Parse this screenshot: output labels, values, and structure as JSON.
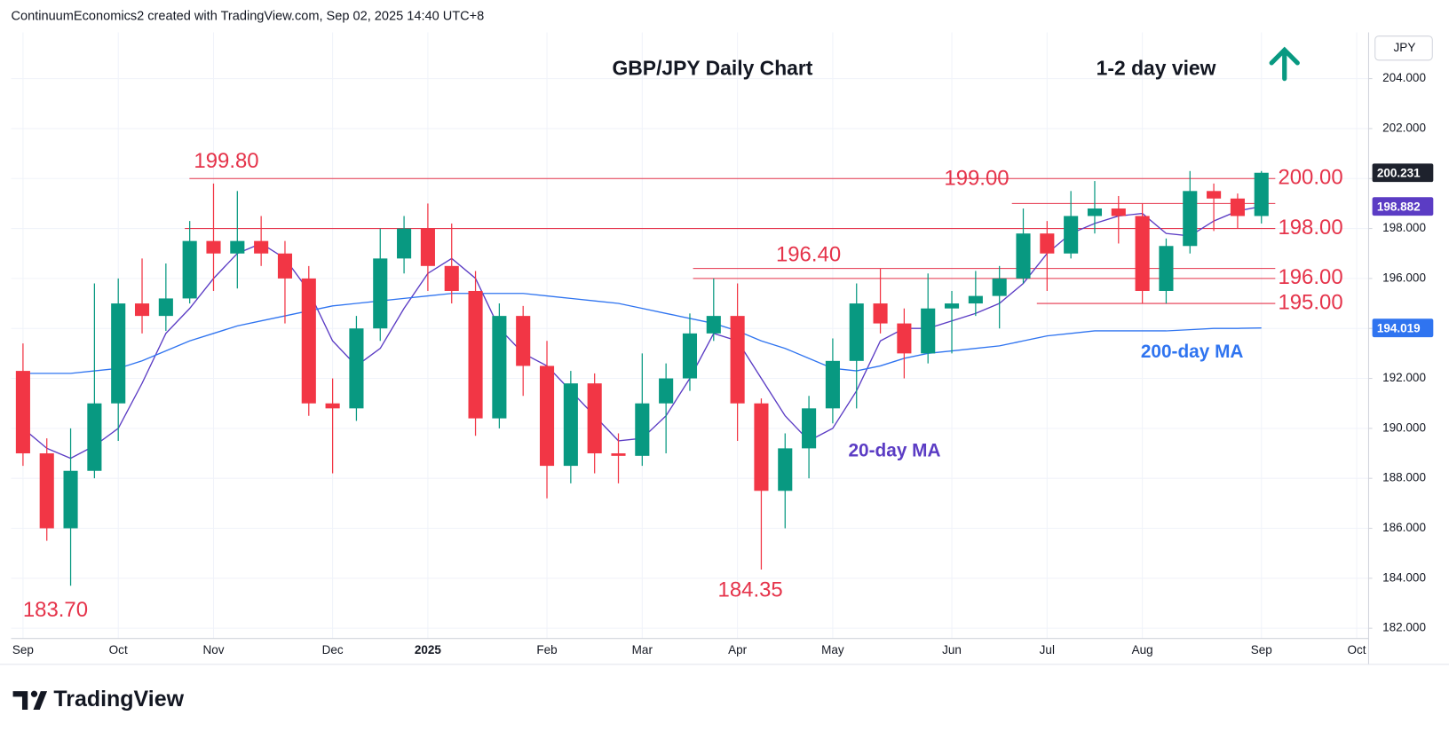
{
  "chart_data": {
    "type": "candlestick",
    "header": "ContinuumEconomics2 created with TradingView.com, Sep 02, 2025 14:40 UTC+8",
    "title": "GBP/JPY Daily Chart",
    "subtitle": "1-2 day view",
    "currency": "JPY",
    "brand": "TradingView",
    "categories": [
      "Sep",
      null,
      null,
      null,
      "Oct",
      null,
      null,
      null,
      "Nov",
      null,
      null,
      null,
      null,
      "Dec",
      null,
      null,
      null,
      "2025",
      null,
      null,
      null,
      null,
      "Feb",
      null,
      null,
      null,
      "Mar",
      null,
      null,
      null,
      "Apr",
      null,
      null,
      null,
      "May",
      null,
      null,
      null,
      null,
      "Jun",
      null,
      null,
      null,
      "Jul",
      null,
      null,
      null,
      "Aug",
      null,
      null,
      null,
      null,
      "Sep",
      null,
      null,
      null,
      "Oct"
    ],
    "open": [
      192.3,
      189.0,
      186.0,
      188.3,
      191.0,
      195.0,
      194.5,
      195.2,
      197.5,
      197.0,
      197.5,
      197.0,
      196.0,
      191.0,
      190.8,
      194.0,
      196.8,
      198.0,
      196.5,
      195.5,
      190.4,
      194.5,
      192.5,
      188.5,
      191.8,
      189.0,
      188.9,
      191.0,
      192.0,
      193.8,
      194.5,
      191.0,
      187.5,
      189.2,
      190.8,
      192.7,
      195.0,
      194.2,
      193.0,
      194.8,
      195.0,
      195.3,
      196.0,
      197.8,
      197.0,
      198.5,
      198.8,
      198.5,
      195.5,
      197.3,
      199.5,
      199.2,
      198.5,
      null,
      null,
      null,
      null
    ],
    "high": [
      193.4,
      189.6,
      190.0,
      195.8,
      196.0,
      196.8,
      196.6,
      198.3,
      199.8,
      199.5,
      198.5,
      197.5,
      196.5,
      192.0,
      194.5,
      198.0,
      198.5,
      199.0,
      198.2,
      196.3,
      195.0,
      194.9,
      193.5,
      192.3,
      192.2,
      189.8,
      193.0,
      192.6,
      194.6,
      196.0,
      195.8,
      191.2,
      189.8,
      191.3,
      193.6,
      195.8,
      196.4,
      194.8,
      196.2,
      195.5,
      196.3,
      196.5,
      198.8,
      198.3,
      199.5,
      199.9,
      199.3,
      199.0,
      197.6,
      200.3,
      199.8,
      199.4,
      200.3,
      null,
      null,
      null,
      null
    ],
    "low": [
      188.5,
      185.5,
      183.7,
      188.0,
      189.5,
      193.8,
      193.9,
      195.0,
      195.5,
      195.6,
      196.5,
      194.2,
      190.5,
      188.2,
      190.3,
      193.5,
      196.2,
      195.5,
      195.0,
      189.7,
      190.0,
      191.3,
      187.2,
      187.8,
      188.2,
      187.8,
      188.5,
      189.0,
      191.5,
      193.5,
      189.5,
      184.35,
      186.0,
      188.0,
      190.2,
      190.8,
      193.8,
      192.0,
      192.6,
      193.0,
      194.5,
      194.0,
      195.8,
      195.5,
      196.8,
      197.8,
      197.4,
      195.0,
      195.0,
      197.0,
      197.9,
      198.0,
      198.2,
      null,
      null,
      null,
      null
    ],
    "close": [
      189.0,
      186.0,
      188.3,
      191.0,
      195.0,
      194.5,
      195.2,
      197.5,
      197.0,
      197.5,
      197.0,
      196.0,
      191.0,
      190.8,
      194.0,
      196.8,
      198.0,
      196.5,
      195.5,
      190.4,
      194.5,
      192.5,
      188.5,
      191.8,
      189.0,
      188.9,
      191.0,
      192.0,
      193.8,
      194.5,
      191.0,
      187.5,
      189.2,
      190.8,
      192.7,
      195.0,
      194.2,
      193.0,
      194.8,
      195.0,
      195.3,
      196.0,
      197.8,
      197.0,
      198.5,
      198.8,
      198.5,
      195.5,
      197.3,
      199.5,
      199.2,
      198.5,
      200.231,
      null,
      null,
      null,
      null
    ],
    "up_color": "#089981",
    "down_color": "#f23645",
    "last_color": "#1e222d",
    "overlays": [
      {
        "name": "20-day MA",
        "color": "#5b3cc4",
        "values": [
          190.0,
          189.2,
          188.8,
          189.3,
          190.0,
          191.8,
          193.8,
          194.8,
          196.0,
          197.0,
          197.4,
          196.8,
          195.5,
          193.5,
          192.5,
          193.2,
          194.8,
          196.2,
          196.8,
          196.0,
          194.0,
          193.0,
          192.5,
          191.5,
          190.5,
          189.5,
          189.6,
          190.5,
          192.0,
          193.8,
          193.5,
          192.0,
          190.5,
          189.5,
          190.0,
          191.5,
          193.5,
          194.0,
          194.0,
          194.3,
          194.6,
          195.0,
          195.8,
          197.0,
          197.8,
          198.2,
          198.5,
          198.6,
          197.8,
          197.7,
          198.3,
          198.7,
          198.882,
          null,
          null,
          null,
          null
        ]
      },
      {
        "name": "200-day MA",
        "color": "#2f74f0",
        "values": [
          192.2,
          192.2,
          192.2,
          192.3,
          192.4,
          192.7,
          193.1,
          193.5,
          193.8,
          194.1,
          194.3,
          194.5,
          194.7,
          194.9,
          195.0,
          195.1,
          195.2,
          195.3,
          195.4,
          195.4,
          195.4,
          195.4,
          195.3,
          195.2,
          195.1,
          195.0,
          194.8,
          194.6,
          194.4,
          194.2,
          193.9,
          193.5,
          193.2,
          192.8,
          192.4,
          192.3,
          192.5,
          192.8,
          193.0,
          193.1,
          193.2,
          193.3,
          193.5,
          193.7,
          193.8,
          193.9,
          193.9,
          193.9,
          193.9,
          193.95,
          194.0,
          194.0,
          194.019,
          null,
          null,
          null,
          null
        ]
      }
    ],
    "levels": [
      {
        "value": 200,
        "label": "200.00"
      },
      {
        "value": 199,
        "label": "199.00"
      },
      {
        "value": 198,
        "label": "198.00"
      },
      {
        "value": 196.4,
        "label": "196.40"
      },
      {
        "value": 196,
        "label": "196.00"
      },
      {
        "value": 195,
        "label": "195.00"
      }
    ],
    "annotations": [
      {
        "value": 199.8,
        "label": "199.80"
      },
      {
        "value": 183.7,
        "label": "183.70"
      },
      {
        "value": 184.35,
        "label": "184.35"
      }
    ],
    "level_color": "#e5334a",
    "ylim": [
      181.59,
      205.85
    ],
    "yticks": [
      {
        "value": 182,
        "label": "182.000"
      },
      {
        "value": 184,
        "label": "184.000"
      },
      {
        "value": 186,
        "label": "186.000"
      },
      {
        "value": 188,
        "label": "188.000"
      },
      {
        "value": 190,
        "label": "190.000"
      },
      {
        "value": 192,
        "label": "192.000"
      },
      {
        "value": 194,
        "label": "194.000"
      },
      {
        "value": 196,
        "label": "196.000"
      },
      {
        "value": 198,
        "label": "198.000"
      },
      {
        "value": 200,
        "label": "200.000"
      },
      {
        "value": 202,
        "label": "202.000"
      },
      {
        "value": 204,
        "label": "204.000"
      }
    ],
    "grid": true
  }
}
